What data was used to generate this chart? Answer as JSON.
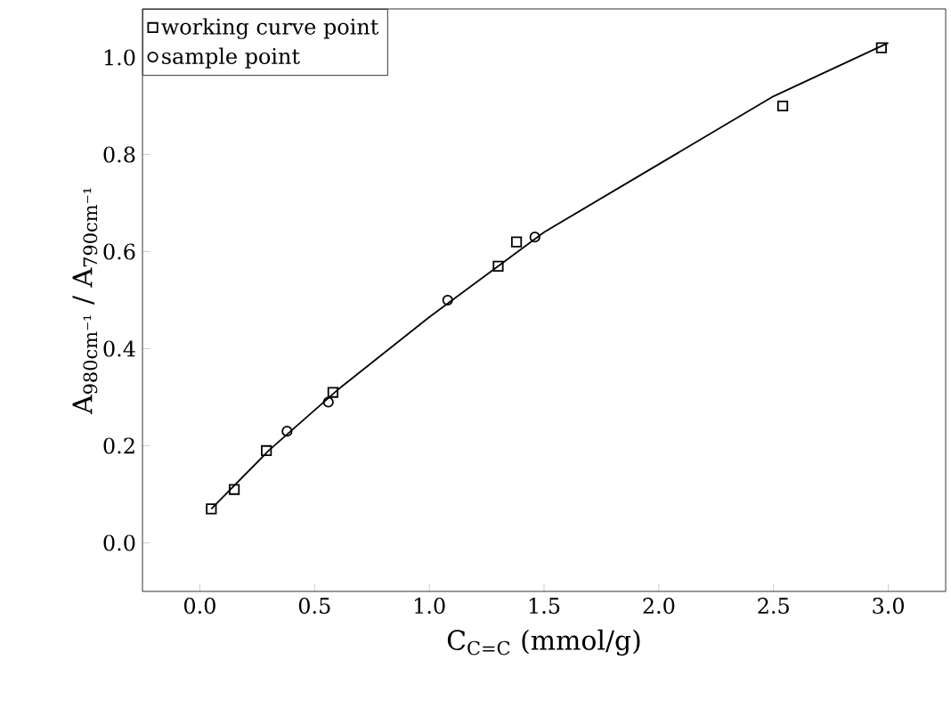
{
  "chart_data": {
    "type": "scatter",
    "xlabel": "C$_{C=C}$ (mmol/g)",
    "ylabel": "A$_{980cm⁻¹}$ / A$_{790cm⁻¹}$",
    "xlim": [
      -0.25,
      3.25
    ],
    "ylim": [
      -0.1,
      1.1
    ],
    "xticks": [
      {
        "value": 0,
        "label": "0.0"
      },
      {
        "value": 0.5,
        "label": "0.5"
      },
      {
        "value": 1,
        "label": "1.0"
      },
      {
        "value": 1.5,
        "label": "1.5"
      },
      {
        "value": 2,
        "label": "2.0"
      },
      {
        "value": 2.5,
        "label": "2.5"
      },
      {
        "value": 3,
        "label": "3.0"
      }
    ],
    "yticks": [
      {
        "value": 0,
        "label": "0.0"
      },
      {
        "value": 0.2,
        "label": "0.2"
      },
      {
        "value": 0.4,
        "label": "0.4"
      },
      {
        "value": 0.6,
        "label": "0.6"
      },
      {
        "value": 0.8,
        "label": "0.8"
      },
      {
        "value": 1,
        "label": "1.0"
      }
    ],
    "legend": "top left",
    "series": [
      {
        "name": "working curve point",
        "marker": "square",
        "color": "#000000",
        "x": [
          0.05,
          0.15,
          0.29,
          0.58,
          1.3,
          1.38,
          2.54,
          2.97
        ],
        "values": [
          0.07,
          0.11,
          0.19,
          0.31,
          0.57,
          0.62,
          0.9,
          1.02
        ]
      },
      {
        "name": "sample point",
        "marker": "circle",
        "color": "#000000",
        "x": [
          0.38,
          0.56,
          1.08,
          1.46
        ],
        "values": [
          0.23,
          0.29,
          0.5,
          0.63
        ]
      },
      {
        "type": "line",
        "marker": "none",
        "color": "#000000",
        "x": [
          0.05,
          0.3,
          0.6,
          1.0,
          1.5,
          2.0,
          2.5,
          3.0
        ],
        "values": [
          0.07,
          0.19,
          0.315,
          0.465,
          0.64,
          0.78,
          0.92,
          1.03
        ]
      }
    ]
  }
}
